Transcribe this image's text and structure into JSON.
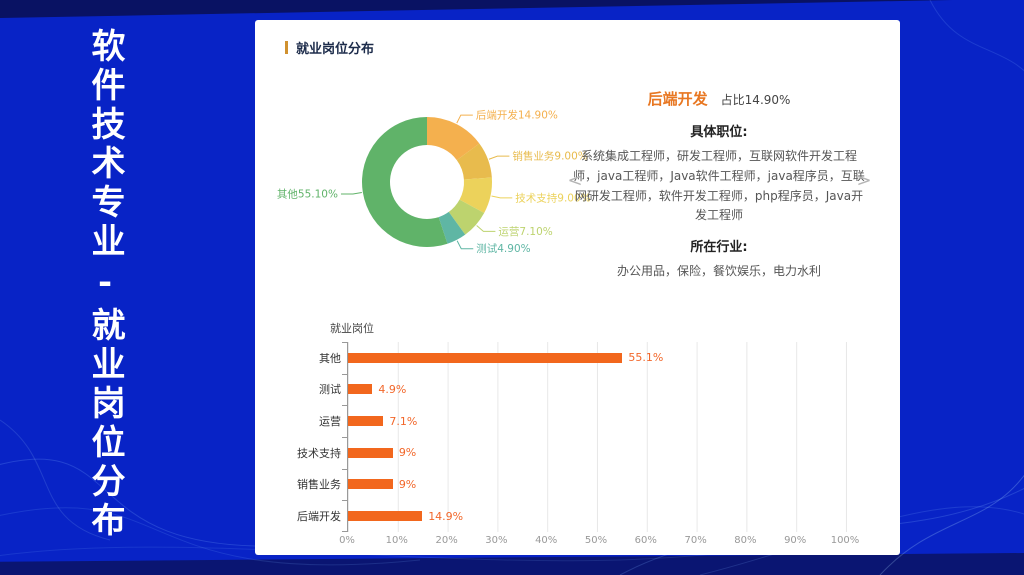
{
  "slide": {
    "vertical_title": "软件技术专业-就业岗位分布"
  },
  "panel": {
    "header": {
      "title": "就业岗位分布"
    },
    "detail": {
      "title": "后端开发",
      "share": "占比14.90%",
      "positions_heading": "具体职位:",
      "positions": "系统集成工程师，研发工程师，互联网软件开发工程师，java工程师，Java软件工程师，java程序员，互联网研发工程师，软件开发工程师，php程序员，Java开发工程师",
      "industries_heading": "所在行业:",
      "industries": "办公用品，保险，餐饮娱乐，电力水利",
      "prev_label": "<",
      "next_label": ">"
    }
  },
  "colors": {
    "background_blue": "#0823c6",
    "band_navy": "#0a1572",
    "header_accent_orange": "#d0912f",
    "detail_title_orange": "#e87722",
    "bar_orange": "#f2671d",
    "value_label_orange": "#f2672a"
  },
  "chart_data": [
    {
      "type": "pie",
      "subtype": "donut",
      "categories": [
        "后端开发",
        "销售业务",
        "技术支持",
        "运营",
        "测试",
        "其他"
      ],
      "values": [
        14.9,
        9.0,
        9.0,
        7.1,
        4.9,
        55.1
      ],
      "labels": [
        "后端开发14.90%",
        "销售业务9.00%",
        "技术支持9.00%",
        "运营7.10%",
        "测试4.90%",
        "其他55.10%"
      ],
      "colors": [
        "#f4b04e",
        "#e8bb4d",
        "#ecd25b",
        "#bdd36e",
        "#5fb6a4",
        "#60b369"
      ],
      "start_angle_deg": 0,
      "direction": "clockwise",
      "legend": "none"
    },
    {
      "type": "bar",
      "orientation": "horizontal",
      "title": "就业岗位",
      "categories": [
        "其他",
        "测试",
        "运营",
        "技术支持",
        "销售业务",
        "后端开发"
      ],
      "values": [
        55.1,
        4.9,
        7.1,
        9,
        9,
        14.9
      ],
      "value_labels": [
        "55.1%",
        "4.9%",
        "7.1%",
        "9%",
        "9%",
        "14.9%"
      ],
      "xticks": [
        "0%",
        "10%",
        "20%",
        "30%",
        "40%",
        "50%",
        "60%",
        "70%",
        "80%",
        "90%",
        "100%"
      ],
      "xlim": [
        0,
        100
      ],
      "bar_color": "#f2671d",
      "grid": true
    }
  ]
}
